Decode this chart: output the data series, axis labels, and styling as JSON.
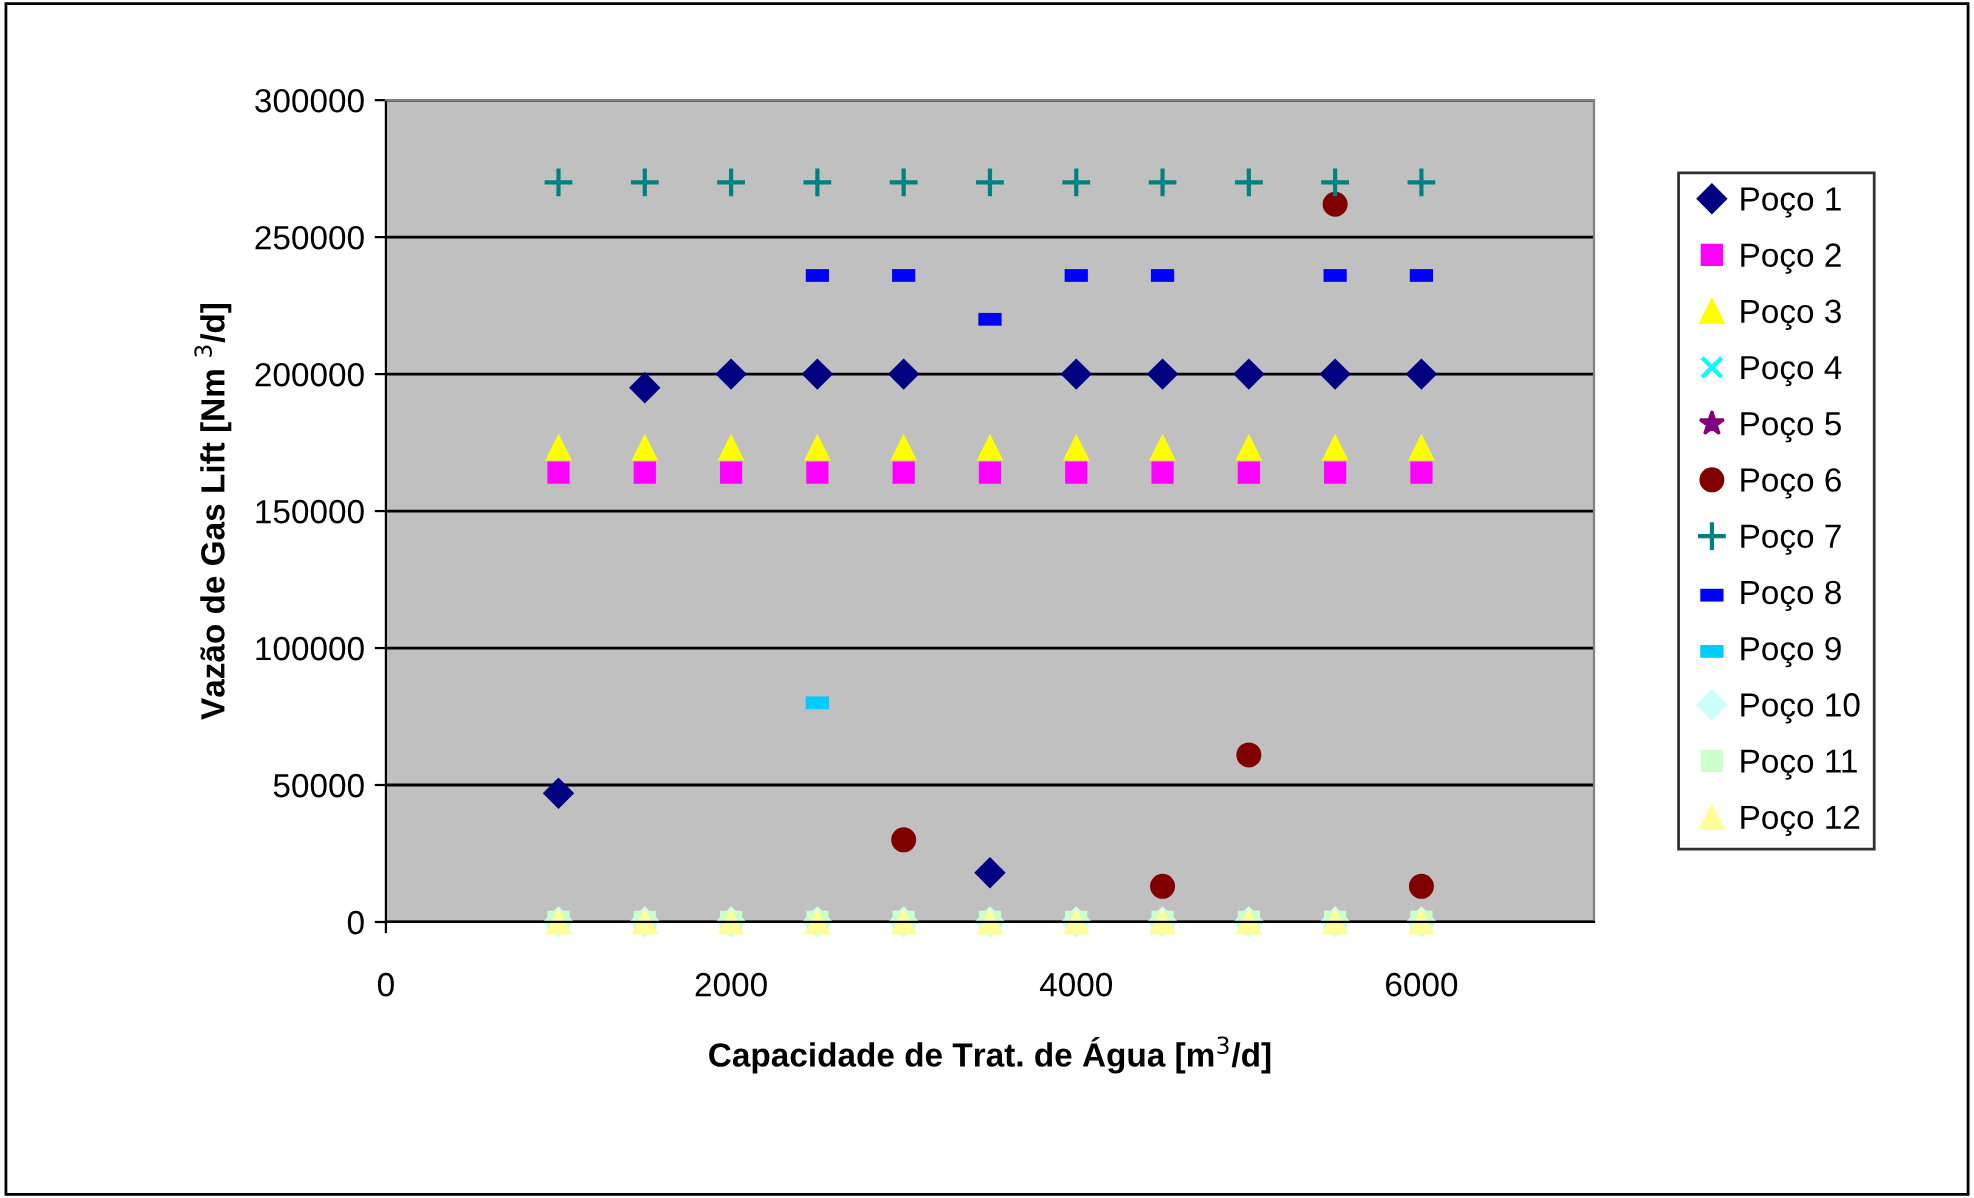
{
  "chart_data": {
    "type": "scatter",
    "xlabel": "Capacidade de Trat. de Água [m$^{3}$/d]",
    "ylabel": "Vazão de Gas Lift [Nm $^{3}$/d]",
    "x": [
      1000,
      1500,
      2000,
      2500,
      3000,
      3500,
      4000,
      4500,
      5000,
      5500,
      6000
    ],
    "xlim": [
      0,
      7000
    ],
    "xticks": [
      0,
      2000,
      4000,
      6000
    ],
    "ylim": [
      0,
      300000
    ],
    "yticks": [
      0,
      50000,
      100000,
      150000,
      200000,
      250000,
      300000
    ],
    "grid": "y",
    "legend": "right",
    "series": [
      {
        "name": "Poço 1",
        "color": "#000080",
        "marker": "diamond",
        "values": [
          47000,
          195000,
          200000,
          200000,
          200000,
          18000,
          200000,
          200000,
          200000,
          200000,
          200000
        ]
      },
      {
        "name": "Poço 2",
        "color": "#ff00ff",
        "marker": "square",
        "values": [
          164000,
          164000,
          164000,
          164000,
          164000,
          164000,
          164000,
          164000,
          164000,
          164000,
          164000
        ]
      },
      {
        "name": "Poço 3",
        "color": "#ffff00",
        "marker": "triangle",
        "values": [
          173000,
          173000,
          173000,
          173000,
          173000,
          173000,
          173000,
          173000,
          173000,
          173000,
          173000
        ]
      },
      {
        "name": "Poço 4",
        "color": "#00ffff",
        "marker": "cross",
        "values": [
          0,
          0,
          0,
          0,
          0,
          0,
          0,
          0,
          0,
          0,
          0
        ]
      },
      {
        "name": "Poço 5",
        "color": "#800080",
        "marker": "star",
        "values": [
          null,
          null,
          null,
          null,
          null,
          null,
          null,
          null,
          null,
          null,
          null
        ]
      },
      {
        "name": "Poço 6",
        "color": "#800000",
        "marker": "circle",
        "values": [
          null,
          null,
          null,
          null,
          30000,
          null,
          null,
          13000,
          61000,
          262000,
          13000
        ]
      },
      {
        "name": "Poço 7",
        "color": "#008080",
        "marker": "plus",
        "values": [
          270000,
          270000,
          270000,
          270000,
          270000,
          270000,
          270000,
          270000,
          270000,
          270000,
          270000
        ]
      },
      {
        "name": "Poço 8",
        "color": "#0000ff",
        "values": [
          null,
          null,
          null,
          236000,
          236000,
          220000,
          236000,
          236000,
          null,
          236000,
          236000
        ]
      },
      {
        "name": "Poço 9",
        "color": "#00ccff",
        "values": [
          null,
          null,
          null,
          80000,
          null,
          null,
          null,
          null,
          null,
          null,
          null
        ]
      },
      {
        "name": "Poço 10",
        "color": "#ccffff",
        "marker": "diamond",
        "values": [
          0,
          0,
          0,
          0,
          0,
          0,
          0,
          0,
          0,
          0,
          0
        ]
      },
      {
        "name": "Poço 11",
        "color": "#ccffcc",
        "marker": "square",
        "values": [
          0,
          0,
          0,
          0,
          0,
          0,
          0,
          0,
          0,
          0,
          0
        ]
      },
      {
        "name": "Poço 12",
        "color": "#ffff99",
        "marker": "triangle",
        "values": [
          0,
          0,
          0,
          0,
          0,
          0,
          0,
          0,
          0,
          0,
          0
        ]
      }
    ]
  }
}
